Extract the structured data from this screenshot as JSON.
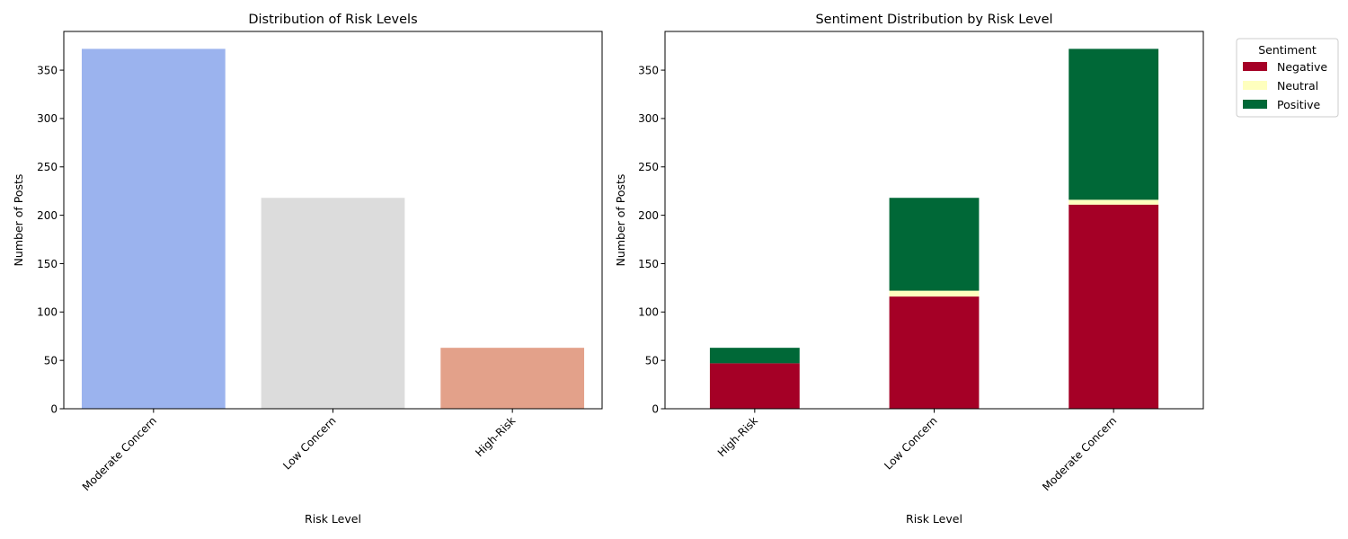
{
  "chart_data": [
    {
      "type": "bar",
      "title": "Distribution of Risk Levels",
      "xlabel": "Risk Level",
      "ylabel": "Number of Posts",
      "categories": [
        "Moderate Concern",
        "Low Concern",
        "High-Risk"
      ],
      "values": [
        372,
        218,
        63
      ],
      "colors": [
        "#9bb3ee",
        "#dcdcdc",
        "#e3a18a"
      ],
      "ylim": [
        0,
        390
      ],
      "yticks": [
        0,
        50,
        100,
        150,
        200,
        250,
        300,
        350
      ],
      "grid": false
    },
    {
      "type": "bar",
      "stacked": true,
      "title": "Sentiment Distribution by Risk Level",
      "xlabel": "Risk Level",
      "ylabel": "Number of Posts",
      "categories": [
        "High-Risk",
        "Low Concern",
        "Moderate Concern"
      ],
      "series": [
        {
          "name": "Negative",
          "values": [
            47,
            116,
            211
          ],
          "color": "#a50026"
        },
        {
          "name": "Neutral",
          "values": [
            0,
            6,
            5
          ],
          "color": "#feffbe"
        },
        {
          "name": "Positive",
          "values": [
            16,
            96,
            156
          ],
          "color": "#006837"
        }
      ],
      "legend_title": "Sentiment",
      "legend_position": "outside-top-right",
      "ylim": [
        0,
        390
      ],
      "yticks": [
        0,
        50,
        100,
        150,
        200,
        250,
        300,
        350
      ],
      "grid": false
    }
  ]
}
